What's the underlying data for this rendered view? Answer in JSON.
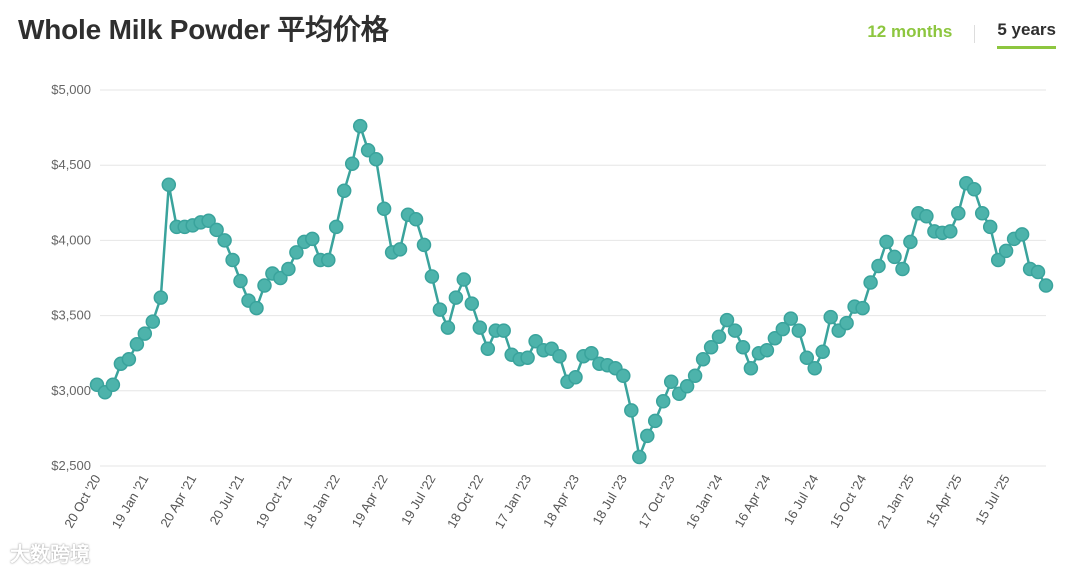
{
  "header": {
    "title": "Whole Milk Powder 平均价格"
  },
  "tabs": [
    {
      "label": "12 months",
      "active": false
    },
    {
      "label": "5 years",
      "active": true
    }
  ],
  "watermark": "大数跨境",
  "colors": {
    "line": "#3aa39c",
    "marker_fill": "#4db3ab",
    "grid": "#e6e6e6",
    "accent": "#8dc63f"
  },
  "chart_data": {
    "type": "line",
    "title": "Whole Milk Powder 平均价格",
    "xlabel": "",
    "ylabel": "",
    "ylim": [
      2500,
      5000
    ],
    "y_ticks": [
      {
        "value": 5000,
        "label": "$5,000"
      },
      {
        "value": 4500,
        "label": "$4,500"
      },
      {
        "value": 4000,
        "label": "$4,000"
      },
      {
        "value": 3500,
        "label": "$3,500"
      },
      {
        "value": 3000,
        "label": "$3,000"
      },
      {
        "value": 2500,
        "label": "$2,500"
      }
    ],
    "x_ticks": [
      {
        "index": 0,
        "label": "20 Oct '20"
      },
      {
        "index": 6,
        "label": "19 Jan '21"
      },
      {
        "index": 12,
        "label": "20 Apr '21"
      },
      {
        "index": 18,
        "label": "20 Jul '21"
      },
      {
        "index": 24,
        "label": "19 Oct '21"
      },
      {
        "index": 30,
        "label": "18 Jan '22"
      },
      {
        "index": 36,
        "label": "19 Apr '22"
      },
      {
        "index": 42,
        "label": "19 Jul '22"
      },
      {
        "index": 48,
        "label": "18 Oct '22"
      },
      {
        "index": 54,
        "label": "17 Jan '23"
      },
      {
        "index": 60,
        "label": "18 Apr '23"
      },
      {
        "index": 66,
        "label": "18 Jul '23"
      },
      {
        "index": 72,
        "label": "17 Oct '23"
      },
      {
        "index": 78,
        "label": "16 Jan '24"
      },
      {
        "index": 84,
        "label": "16 Apr '24"
      },
      {
        "index": 90,
        "label": "16 Jul '24"
      },
      {
        "index": 96,
        "label": "15 Oct '24"
      },
      {
        "index": 102,
        "label": "21 Jan '25"
      },
      {
        "index": 108,
        "label": "15 Apr '25"
      },
      {
        "index": 114,
        "label": "15 Jul '25"
      }
    ],
    "series": [
      {
        "values": [
          3040,
          2990,
          3040,
          3180,
          3210,
          3310,
          3380,
          3460,
          3620,
          4370,
          4090,
          4090,
          4100,
          4120,
          4130,
          4070,
          4000,
          3870,
          3730,
          3600,
          3550,
          3700,
          3780,
          3750,
          3810,
          3920,
          3990,
          4010,
          3870,
          3870,
          4090,
          4330,
          4510,
          4760,
          4600,
          4540,
          4210,
          3920,
          3940,
          4170,
          4140,
          3970,
          3760,
          3540,
          3420,
          3620,
          3740,
          3580,
          3420,
          3280,
          3400,
          3400,
          3240,
          3210,
          3220,
          3330,
          3270,
          3280,
          3230,
          3060,
          3090,
          3230,
          3250,
          3180,
          3170,
          3150,
          3100,
          2870,
          2560,
          2700,
          2800,
          2930,
          3060,
          2980,
          3030,
          3100,
          3210,
          3290,
          3360,
          3470,
          3400,
          3290,
          3150,
          3250,
          3270,
          3350,
          3410,
          3480,
          3400,
          3220,
          3150,
          3260,
          3490,
          3400,
          3450,
          3560,
          3550,
          3720,
          3830,
          3990,
          3890,
          3810,
          3990,
          4180,
          4160,
          4060,
          4050,
          4060,
          4180,
          4380,
          4340,
          4180,
          4090,
          3870,
          3930,
          4010,
          4040,
          3810,
          3790,
          3700
        ]
      }
    ]
  }
}
